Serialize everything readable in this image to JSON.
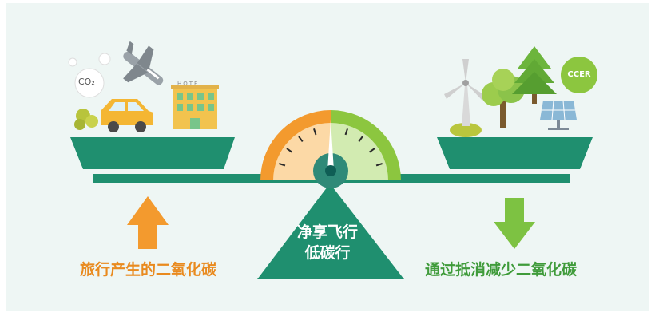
{
  "texts": {
    "left_caption": "旅行产生的二氧化碳",
    "right_caption": "通过抵消减少二氧化碳",
    "center_line1": "净享飞行",
    "center_line2": "低碳行",
    "co2_label": "CO₂",
    "hotel_sign": "HOTEL",
    "ccer_badge": "CCER"
  },
  "gauge": {
    "colors": {
      "orange": "#f39a2e",
      "green": "#8cc63f",
      "hub": "#2f8a78",
      "center": "#0f5e55"
    },
    "ticks_per_side": 4
  },
  "colors": {
    "beam": "#1f8f6f",
    "tray": "#1f8f6f",
    "fulcrum": "#1f8f6f",
    "arrow_up": "#f39a2e",
    "arrow_down": "#7dc242",
    "left_text": "#e98a1e",
    "right_text": "#3f9b3a"
  },
  "icons": {
    "left": [
      "airplane-icon",
      "car-icon",
      "hotel-icon",
      "co2-cloud-icon"
    ],
    "right": [
      "wind-turbine-icon",
      "tree-icon",
      "pine-tree-icon",
      "solar-panel-icon",
      "ccer-badge-icon"
    ]
  }
}
